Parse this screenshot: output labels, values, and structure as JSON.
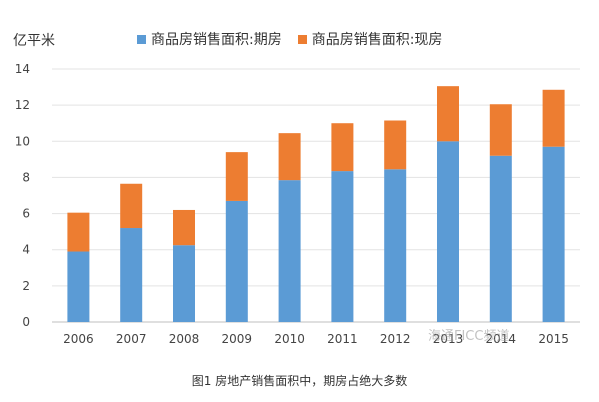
{
  "chart_data": {
    "type": "bar",
    "stacked": true,
    "title": "",
    "unit_label": "亿平米",
    "ylim": [
      0,
      14
    ],
    "y_ticks": [
      0,
      2,
      4,
      6,
      8,
      10,
      12,
      14
    ],
    "grid": true,
    "legend_position": "top",
    "categories": [
      "2006",
      "2007",
      "2008",
      "2009",
      "2010",
      "2011",
      "2012",
      "2013",
      "2014",
      "2015"
    ],
    "series": [
      {
        "name": "商品房销售面积:期房",
        "color": "#5b9bd5",
        "values": [
          3.9,
          5.2,
          4.25,
          6.7,
          7.85,
          8.35,
          8.45,
          10.0,
          9.2,
          9.7
        ]
      },
      {
        "name": "商品房销售面积:现房",
        "color": "#ed7d31",
        "values": [
          2.15,
          2.45,
          1.95,
          2.7,
          2.6,
          2.65,
          2.7,
          3.05,
          2.85,
          3.15
        ]
      }
    ]
  },
  "caption": "图1 房地产销售面积中，期房占绝大多数",
  "watermark": "海通FICC频道"
}
